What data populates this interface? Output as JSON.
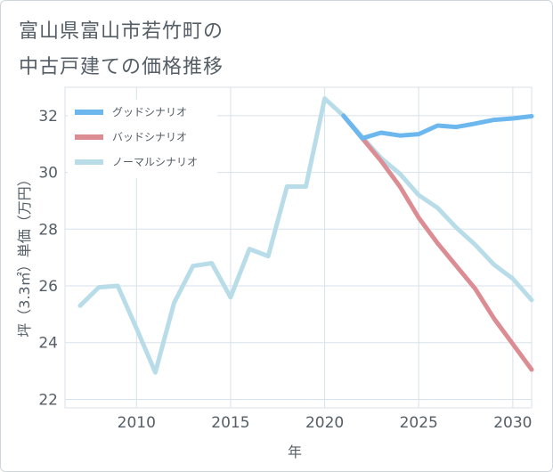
{
  "title": {
    "line1": "富山県富山市若竹町の",
    "line2": "中古戸建ての価格推移"
  },
  "chart_data": {
    "type": "line",
    "xlabel": "年",
    "ylabel": "坪（3.3㎡）単価（万円）",
    "xlim": [
      2006.2,
      2031
    ],
    "ylim": [
      21.7,
      33
    ],
    "xticks": [
      2010,
      2015,
      2020,
      2025,
      2030
    ],
    "yticks": [
      22,
      24,
      26,
      28,
      30,
      32
    ],
    "grid": true,
    "legend_position": "top-left",
    "series": [
      {
        "name": "グッドシナリオ",
        "color": "#6cb8ee",
        "x": [
          2021,
          2022,
          2023,
          2024,
          2025,
          2026,
          2027,
          2028,
          2029,
          2030,
          2031
        ],
        "values": [
          32.0,
          31.2,
          31.4,
          31.3,
          31.35,
          31.65,
          31.6,
          31.72,
          31.85,
          31.9,
          31.98
        ]
      },
      {
        "name": "バッドシナリオ",
        "color": "#dc8c93",
        "x": [
          2021,
          2022,
          2023,
          2024,
          2025,
          2026,
          2027,
          2028,
          2029,
          2030,
          2031
        ],
        "values": [
          32.0,
          31.2,
          30.4,
          29.5,
          28.4,
          27.5,
          26.7,
          25.9,
          24.85,
          23.95,
          23.05
        ]
      },
      {
        "name": "ノーマルシナリオ",
        "color": "#b8dde9",
        "x": [
          2007,
          2008,
          2009,
          2010,
          2011,
          2012,
          2013,
          2014,
          2015,
          2016,
          2017,
          2018,
          2019,
          2020,
          2021,
          2022,
          2023,
          2024,
          2025,
          2026,
          2027,
          2028,
          2029,
          2030,
          2031
        ],
        "values": [
          25.3,
          25.95,
          26.0,
          24.5,
          22.95,
          25.4,
          26.7,
          26.8,
          25.6,
          27.3,
          27.05,
          29.5,
          29.5,
          32.6,
          32.0,
          31.25,
          30.5,
          29.95,
          29.2,
          28.75,
          28.05,
          27.45,
          26.75,
          26.25,
          25.5
        ]
      }
    ]
  }
}
